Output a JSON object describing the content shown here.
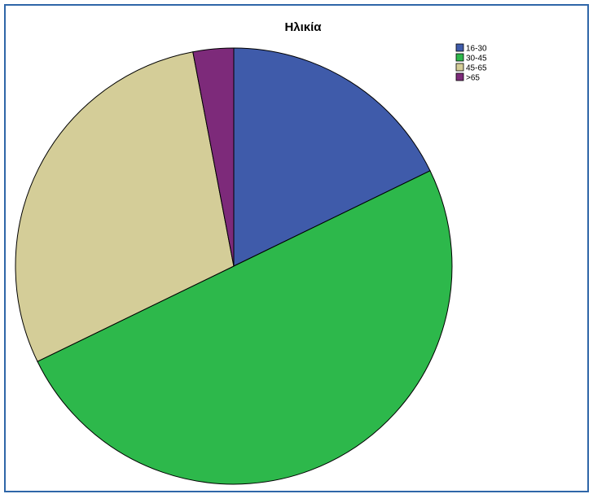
{
  "chart_data": {
    "type": "pie",
    "title": "Ηλικία",
    "categories": [
      "16-30",
      "30-45",
      "45-65",
      ">65"
    ],
    "values": [
      17.8,
      50.0,
      29.2,
      3.0
    ],
    "colors": [
      "#3f5baa",
      "#2db84b",
      "#d4cd98",
      "#7d2a7a"
    ],
    "legend_position": "top-right",
    "start_angle_deg": 0,
    "direction": "clockwise"
  }
}
